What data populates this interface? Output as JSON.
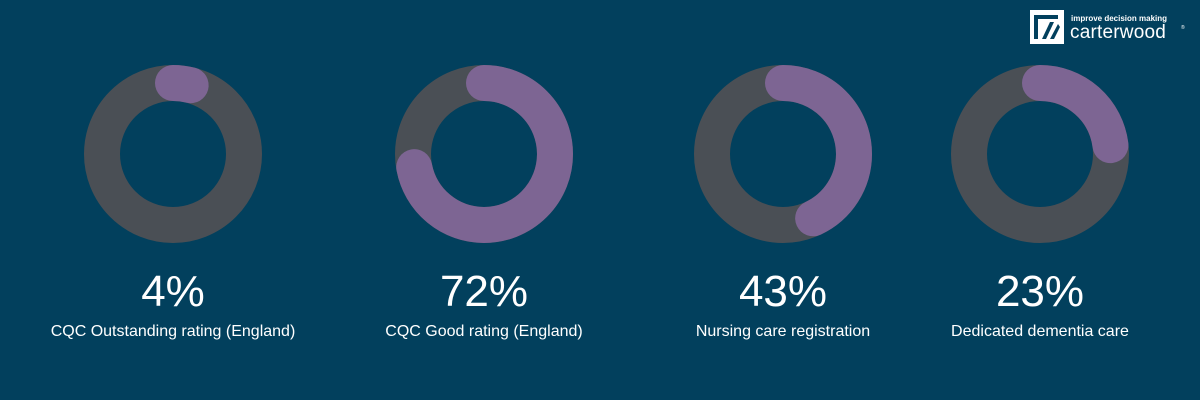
{
  "brand": {
    "tagline": "improve decision making",
    "name": "carterwood",
    "reg": "®"
  },
  "colors": {
    "background": "#02405d",
    "track": "#4a4f55",
    "fill": "#7d6593",
    "text": "#ffffff"
  },
  "chart_data": [
    {
      "type": "pie",
      "value": 4,
      "value_label": "4%",
      "label": "CQC Outstanding rating (England)"
    },
    {
      "type": "pie",
      "value": 72,
      "value_label": "72%",
      "label": "CQC Good rating (England)"
    },
    {
      "type": "pie",
      "value": 43,
      "value_label": "43%",
      "label": "Nursing care registration"
    },
    {
      "type": "pie",
      "value": 23,
      "value_label": "23%",
      "label": "Dedicated dementia care"
    }
  ]
}
